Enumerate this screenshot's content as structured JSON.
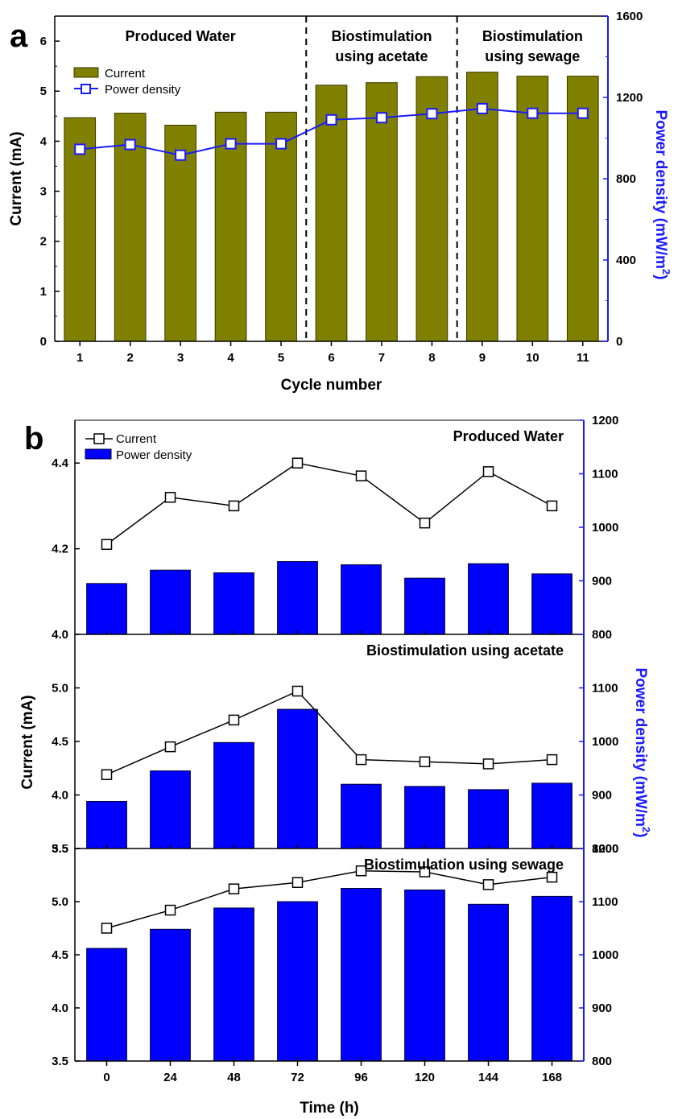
{
  "chart_data": [
    {
      "panel": "a",
      "type": "bar",
      "xlabel": "Cycle number",
      "ylabel": "Current (mA)",
      "y2label_main": "Power density (mW/m",
      "y2label_sup": "2",
      "y2label_end": ")",
      "categories": [
        "1",
        "2",
        "3",
        "4",
        "5",
        "6",
        "7",
        "8",
        "9",
        "10",
        "11"
      ],
      "ylim": [
        0,
        6.5
      ],
      "y2lim": [
        0,
        1600
      ],
      "yticks": [
        0,
        1,
        2,
        3,
        4,
        5,
        6
      ],
      "y2ticks": [
        0,
        400,
        800,
        1200,
        1600
      ],
      "series": [
        {
          "name": "Current",
          "kind": "bar",
          "axis": "left",
          "color": "#808000",
          "values": [
            4.47,
            4.56,
            4.32,
            4.58,
            4.58,
            5.12,
            5.17,
            5.29,
            5.38,
            5.3,
            5.3
          ]
        },
        {
          "name": "Power density",
          "kind": "line",
          "axis": "right",
          "color": "#1a1aff",
          "values": [
            945,
            968,
            916,
            972,
            972,
            1090,
            1100,
            1120,
            1145,
            1122,
            1122
          ]
        }
      ],
      "dividers_after": [
        5,
        8
      ],
      "annotations": [
        {
          "lines": [
            "Produced Water"
          ]
        },
        {
          "lines": [
            "Biostimulation",
            "using acetate"
          ]
        },
        {
          "lines": [
            "Biostimulation",
            "using sewage"
          ]
        }
      ]
    },
    {
      "panel": "b",
      "type": "bar",
      "xlabel": "Time (h)",
      "ylabel": "Current (mA)",
      "y2label_main": "Power density (mW/m",
      "y2label_sup": "2",
      "y2label_end": ")",
      "categories": [
        "0",
        "24",
        "48",
        "72",
        "96",
        "120",
        "144",
        "168"
      ],
      "legend": [
        {
          "name": "Current",
          "kind": "line",
          "color": "#000000"
        },
        {
          "name": "Power density",
          "kind": "bar",
          "color": "#0000ff"
        }
      ],
      "subpanels": [
        {
          "title": "Produced Water",
          "ylim": [
            4.0,
            4.5
          ],
          "yticks": [
            4.0,
            4.2,
            4.4
          ],
          "y2lim": [
            800,
            1200
          ],
          "y2ticks": [
            800,
            900,
            1000,
            1100,
            1200
          ],
          "current": [
            4.21,
            4.32,
            4.3,
            4.4,
            4.37,
            4.26,
            4.38,
            4.3
          ],
          "power": [
            895,
            920,
            915,
            936,
            930,
            905,
            932,
            913
          ]
        },
        {
          "title": "Biostimulation using acetate",
          "ylim": [
            3.5,
            5.5
          ],
          "yticks": [
            3.5,
            4.0,
            4.5,
            5.0
          ],
          "y2lim": [
            800,
            1200
          ],
          "y2ticks": [
            900,
            1000,
            1100
          ],
          "current": [
            4.19,
            4.45,
            4.7,
            4.97,
            4.33,
            4.31,
            4.29,
            4.33
          ],
          "power": [
            888,
            945,
            998,
            1060,
            920,
            916,
            910,
            922
          ]
        },
        {
          "title": "Biostimulation using sewage",
          "ylim": [
            3.5,
            5.5
          ],
          "yticks": [
            3.5,
            4.0,
            4.5,
            5.0,
            5.5
          ],
          "y2lim": [
            800,
            1200
          ],
          "y2ticks": [
            800,
            900,
            1000,
            1100,
            1200
          ],
          "current": [
            4.75,
            4.92,
            5.12,
            5.18,
            5.29,
            5.28,
            5.16,
            5.23
          ],
          "power": [
            1012,
            1048,
            1088,
            1100,
            1125,
            1122,
            1095,
            1110
          ]
        }
      ],
      "overlap_tick_label": "8000"
    }
  ]
}
